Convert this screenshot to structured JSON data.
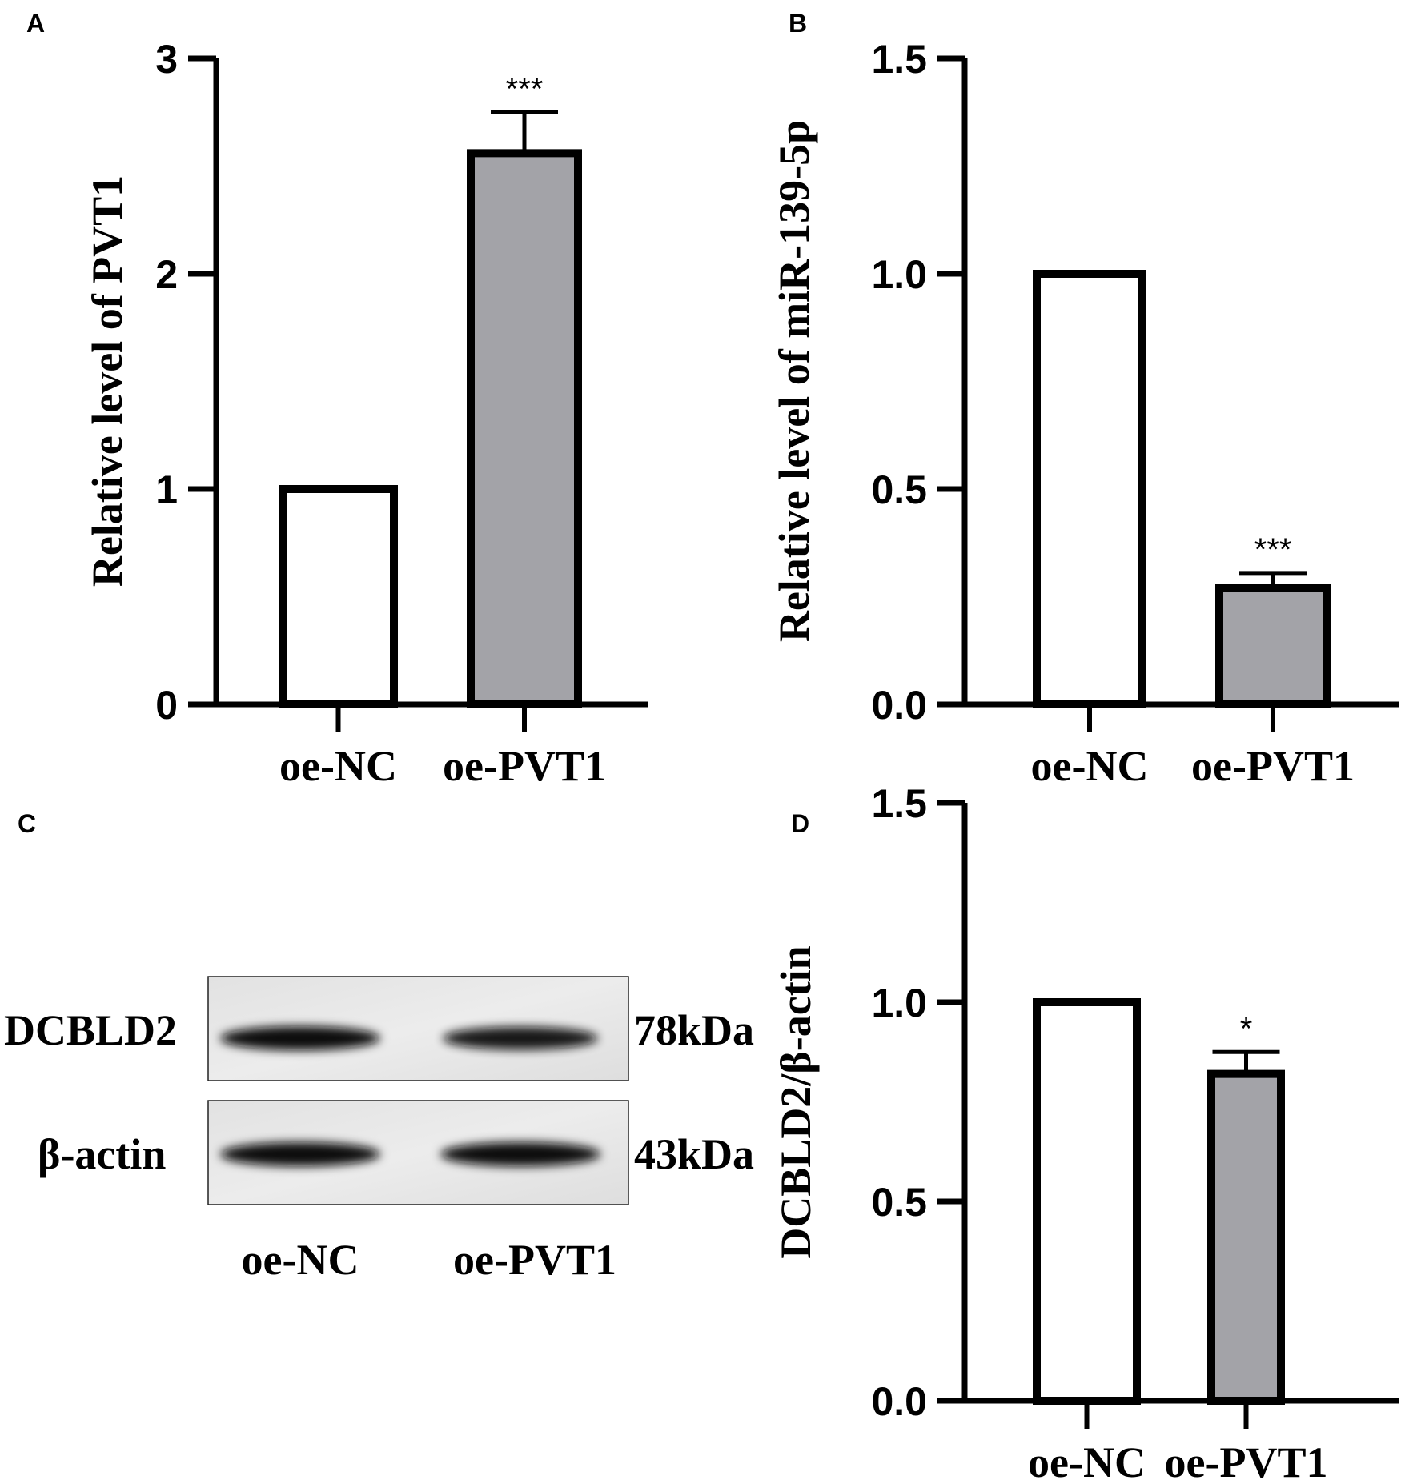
{
  "chart_data": [
    {
      "panel": "A",
      "type": "bar",
      "categories": [
        "oe-NC",
        "oe-PVT1"
      ],
      "values": [
        1.0,
        2.56
      ],
      "errors": [
        0,
        0.19
      ],
      "significance": [
        "",
        "***"
      ],
      "ylabel": "Relative level of PVT1",
      "ylim": [
        0,
        3
      ],
      "yticks": [
        "0",
        "1",
        "2",
        "3"
      ],
      "yticks_values": [
        0,
        1,
        2,
        3
      ],
      "colors": [
        "#ffffff",
        "#a3a3a8"
      ]
    },
    {
      "panel": "B",
      "type": "bar",
      "categories": [
        "oe-NC",
        "oe-PVT1"
      ],
      "values": [
        1.0,
        0.27
      ],
      "errors": [
        0,
        0.035
      ],
      "significance": [
        "",
        "***"
      ],
      "ylabel": "Relative level of miR-139-5p",
      "ylim": [
        0,
        1.5
      ],
      "yticks": [
        "0.0",
        "0.5",
        "1.0",
        "1.5"
      ],
      "yticks_values": [
        0,
        0.5,
        1.0,
        1.5
      ],
      "colors": [
        "#ffffff",
        "#a3a3a8"
      ]
    },
    {
      "panel": "D",
      "type": "bar",
      "categories": [
        "oe-NC",
        "oe-PVT1"
      ],
      "values": [
        1.0,
        0.82
      ],
      "errors": [
        0,
        0.055
      ],
      "significance": [
        "",
        "*"
      ],
      "ylabel": "DCBLD2/β-actin",
      "ylim": [
        0,
        1.5
      ],
      "yticks": [
        "0.0",
        "0.5",
        "1.0",
        "1.5"
      ],
      "yticks_values": [
        0,
        0.5,
        1.0,
        1.5
      ],
      "colors": [
        "#ffffff",
        "#a3a3a8"
      ]
    }
  ],
  "blot": {
    "panel": "C",
    "rows": [
      {
        "protein": "DCBLD2",
        "size": "78kDa",
        "band_intensity": [
          1.0,
          0.8
        ]
      },
      {
        "protein": "β-actin",
        "size": "43kDa",
        "band_intensity": [
          1.0,
          1.0
        ]
      }
    ],
    "lanes": [
      "oe-NC",
      "oe-PVT1"
    ]
  }
}
